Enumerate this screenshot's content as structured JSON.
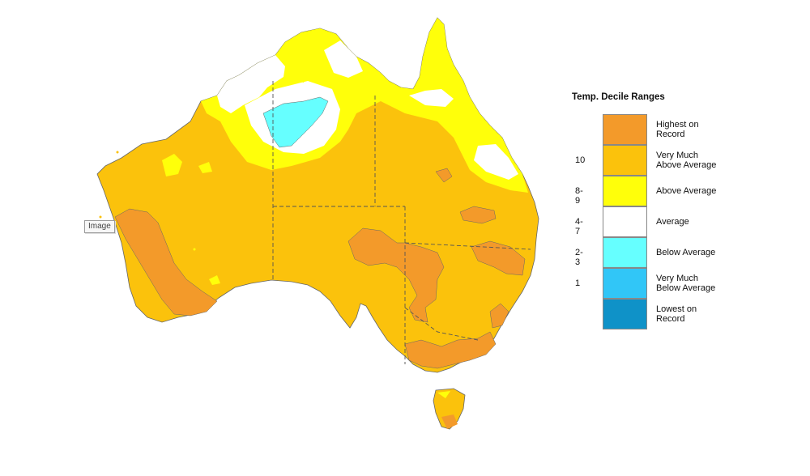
{
  "tooltip": "Image",
  "legend": {
    "title": "Temp. Decile Ranges",
    "items": [
      {
        "label": "Highest on\nRecord",
        "decile": "",
        "color": "#f39a2a"
      },
      {
        "label": "Very Much\nAbove Average",
        "decile": "10",
        "color": "#fbc20c"
      },
      {
        "label": "Above Average",
        "decile": "8-9",
        "color": "#ffff0a"
      },
      {
        "label": "Average",
        "decile": "4-7",
        "color": "#ffffff"
      },
      {
        "label": "Below Average",
        "decile": "2-3",
        "color": "#66ffff"
      },
      {
        "label": "Very Much\nBelow Average",
        "decile": "1",
        "color": "#31c6f7"
      },
      {
        "label": "Lowest on\nRecord",
        "decile": "",
        "color": "#0f92c8"
      }
    ]
  },
  "colors": {
    "highest": "#f39a2a",
    "very_much_above": "#fbc20c",
    "above": "#ffff0a",
    "average": "#ffffff",
    "below": "#66ffff",
    "border": "#555555"
  }
}
